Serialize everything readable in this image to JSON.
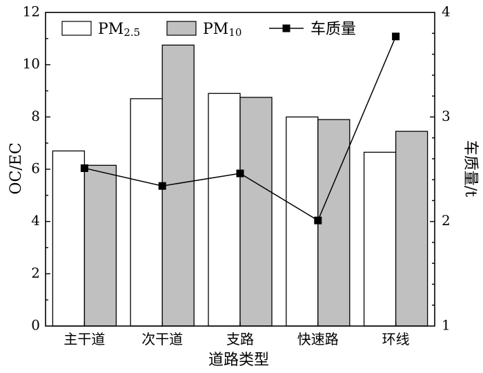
{
  "chart_data": {
    "type": "bar",
    "categories": [
      "主干道",
      "次干道",
      "支路",
      "快速路",
      "环线"
    ],
    "xlabel": "道路类型",
    "ylabel": "OC/EC",
    "y2label": "车质量/t",
    "ylim": [
      0,
      12
    ],
    "y2lim": [
      1,
      4
    ],
    "yticks": [
      "0",
      "2",
      "4",
      "6",
      "8",
      "10",
      "12"
    ],
    "y2ticks": [
      "1",
      "2",
      "3",
      "4"
    ],
    "legend_position": "top",
    "series": [
      {
        "name": "PM2.5",
        "legend_main": "PM",
        "legend_sub": "2.5",
        "type": "bar",
        "axis": "left",
        "color": "#ffffff",
        "values": [
          6.7,
          8.7,
          8.9,
          8.0,
          6.65
        ]
      },
      {
        "name": "PM10",
        "legend_main": "PM",
        "legend_sub": "10",
        "type": "bar",
        "axis": "left",
        "color": "#c0c0c0",
        "values": [
          6.15,
          10.75,
          8.75,
          7.9,
          7.45
        ]
      },
      {
        "name": "车质量",
        "legend_main": "车质量",
        "legend_sub": "",
        "type": "line",
        "axis": "right",
        "color": "#000000",
        "marker": "square",
        "values": [
          2.51,
          2.34,
          2.46,
          2.01,
          3.77
        ]
      }
    ]
  }
}
